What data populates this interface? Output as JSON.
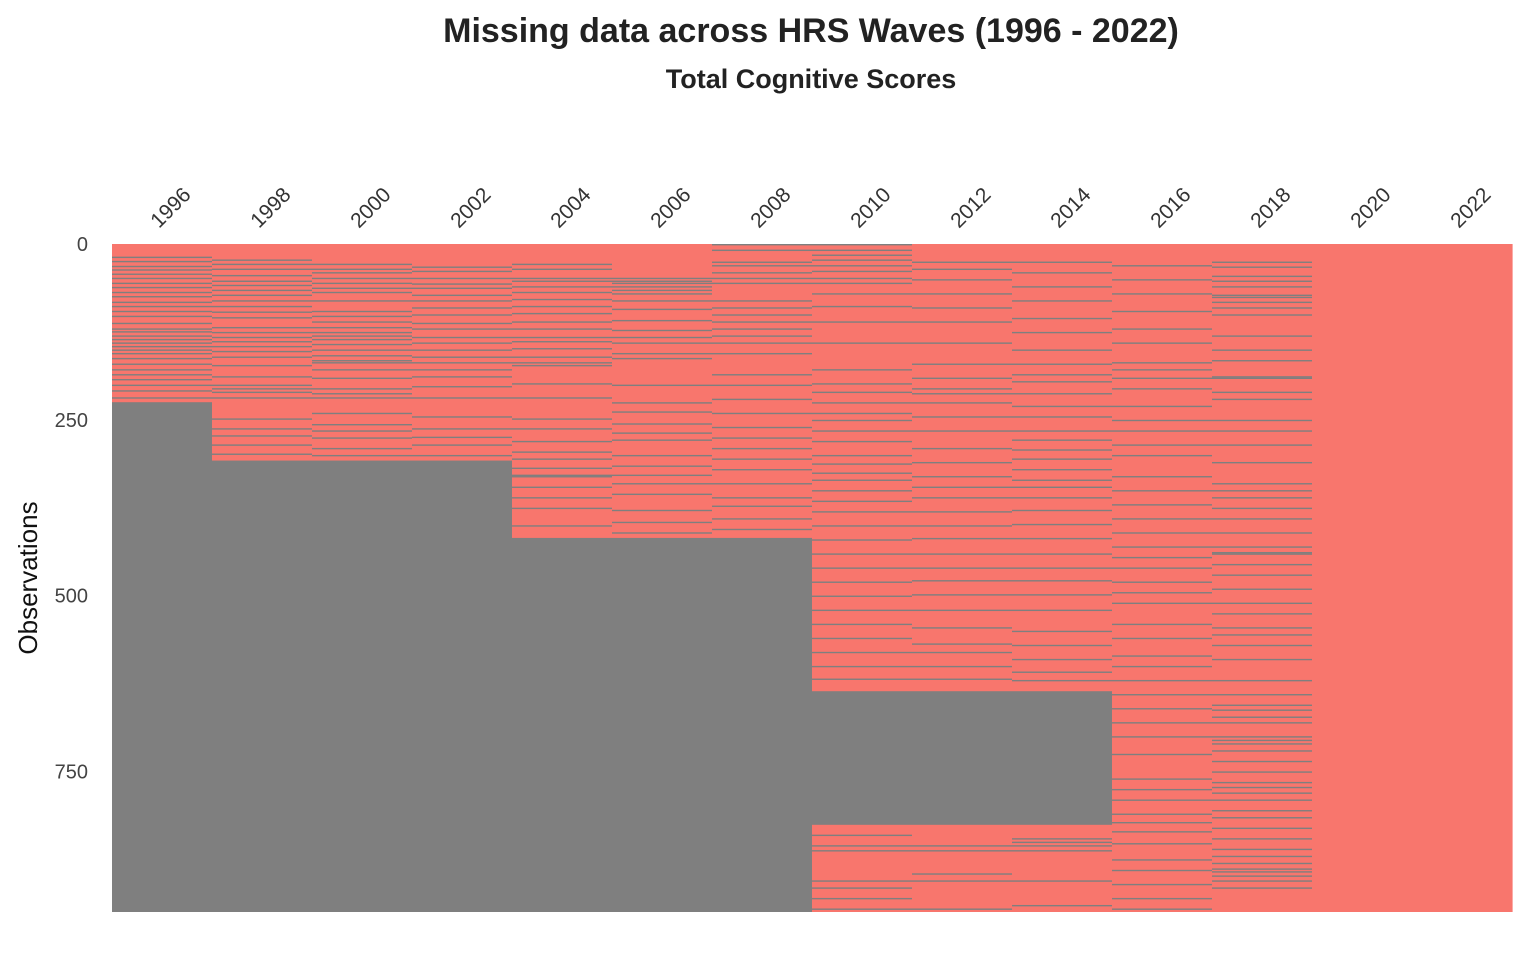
{
  "chart_data": {
    "type": "heatmap",
    "title": "Missing data across HRS Waves (1996 - 2022)",
    "subtitle": "Total Cognitive Scores",
    "xlabel": "",
    "ylabel": "Observations",
    "x_position": "top",
    "categories": [
      "1996",
      "1998",
      "2000",
      "2002",
      "2004",
      "2006",
      "2008",
      "2010",
      "2012",
      "2014",
      "2016",
      "2018",
      "2020",
      "2022"
    ],
    "highlighted_category": "2020",
    "highlight_color": "#ff0000",
    "n_observations": 950,
    "ylim": [
      0,
      950
    ],
    "y_ticks": [
      0,
      250,
      500,
      750
    ],
    "colors": {
      "present": "#f8766d",
      "missing": "#7f7f7f"
    },
    "missing_blocks": [
      {
        "year": "1996",
        "start": 225,
        "end": 950
      },
      {
        "year": "1998",
        "start": 308,
        "end": 950
      },
      {
        "year": "2000",
        "start": 308,
        "end": 950
      },
      {
        "year": "2002",
        "start": 308,
        "end": 950
      },
      {
        "year": "2004",
        "start": 418,
        "end": 950
      },
      {
        "year": "2006",
        "start": 418,
        "end": 950
      },
      {
        "year": "2008",
        "start": 418,
        "end": 950
      },
      {
        "year": "2010",
        "start": 636,
        "end": 826
      },
      {
        "year": "2012",
        "start": 636,
        "end": 826
      },
      {
        "year": "2014",
        "start": 636,
        "end": 826
      }
    ],
    "missing_lines": {
      "1996": [
        18,
        24,
        31,
        36,
        42,
        48,
        55,
        61,
        68,
        74,
        82,
        88,
        95,
        102,
        112,
        120,
        124,
        130,
        135,
        140,
        145,
        150,
        155,
        162,
        170,
        178,
        185,
        192,
        200,
        208,
        218
      ],
      "1998": [
        22,
        28,
        35,
        44,
        52,
        58,
        65,
        72,
        80,
        88,
        96,
        104,
        118,
        125,
        132,
        138,
        145,
        152,
        160,
        172,
        188,
        200,
        205,
        210,
        218,
        248,
        262,
        272,
        285,
        298
      ],
      "2000": [
        28,
        35,
        40,
        48,
        55,
        62,
        68,
        80,
        95,
        102,
        110,
        118,
        125,
        130,
        135,
        142,
        150,
        158,
        165,
        168,
        178,
        190,
        205,
        212,
        218,
        240,
        256,
        265,
        275,
        290,
        300
      ],
      "2002": [
        32,
        38,
        48,
        56,
        62,
        72,
        80,
        90,
        100,
        112,
        120,
        132,
        140,
        150,
        160,
        168,
        178,
        188,
        202,
        218,
        245,
        262,
        274,
        285,
        300
      ],
      "2004": [
        28,
        35,
        48,
        52,
        60,
        68,
        78,
        88,
        98,
        110,
        120,
        132,
        138,
        148,
        160,
        168,
        172,
        198,
        218,
        248,
        262,
        280,
        295,
        305,
        318,
        328,
        330,
        345,
        360,
        375,
        400
      ],
      "2006": [
        48,
        52,
        55,
        60,
        65,
        70,
        80,
        92,
        108,
        122,
        132,
        140,
        155,
        162,
        200,
        225,
        238,
        255,
        268,
        278,
        300,
        315,
        328,
        340,
        355,
        378,
        395,
        410
      ],
      "2008": [
        0,
        8,
        25,
        30,
        40,
        48,
        55,
        80,
        90,
        100,
        110,
        120,
        130,
        140,
        155,
        185,
        200,
        220,
        240,
        260,
        275,
        290,
        305,
        320,
        340,
        360,
        372,
        390,
        405
      ],
      "2010": [
        0,
        8,
        15,
        22,
        30,
        38,
        48,
        55,
        70,
        88,
        110,
        140,
        178,
        198,
        210,
        225,
        240,
        250,
        265,
        280,
        300,
        312,
        325,
        335,
        350,
        365,
        380,
        400,
        420,
        440,
        460,
        480,
        500,
        520,
        540,
        560,
        580,
        600,
        618,
        840,
        855,
        862,
        905,
        915,
        930,
        945
      ],
      "2012": [
        25,
        35,
        50,
        70,
        90,
        110,
        140,
        170,
        190,
        205,
        212,
        225,
        245,
        265,
        290,
        310,
        330,
        345,
        360,
        380,
        400,
        418,
        440,
        460,
        478,
        498,
        520,
        545,
        568,
        580,
        600,
        618,
        855,
        862,
        895,
        905,
        945
      ],
      "2014": [
        25,
        40,
        60,
        80,
        105,
        125,
        150,
        170,
        185,
        195,
        212,
        230,
        245,
        265,
        278,
        292,
        305,
        320,
        335,
        345,
        360,
        378,
        398,
        418,
        440,
        460,
        478,
        498,
        520,
        550,
        570,
        590,
        608,
        620,
        845,
        850,
        855,
        862,
        905,
        940
      ],
      "2016": [
        30,
        50,
        70,
        95,
        120,
        140,
        168,
        178,
        190,
        205,
        230,
        250,
        265,
        285,
        300,
        330,
        350,
        370,
        390,
        410,
        430,
        445,
        460,
        480,
        495,
        510,
        540,
        560,
        585,
        600,
        620,
        640,
        660,
        680,
        700,
        725,
        760,
        775,
        790,
        810,
        822,
        835,
        852,
        875,
        890,
        910,
        930,
        945
      ],
      "2018": [
        25,
        32,
        45,
        52,
        60,
        72,
        75,
        82,
        90,
        100,
        130,
        150,
        165,
        188,
        190,
        210,
        220,
        250,
        265,
        285,
        310,
        340,
        350,
        360,
        375,
        390,
        410,
        430,
        438,
        440,
        455,
        470,
        490,
        510,
        525,
        545,
        555,
        570,
        590,
        620,
        640,
        655,
        662,
        672,
        680,
        700,
        705,
        710,
        720,
        735,
        750,
        765,
        772,
        780,
        790,
        805,
        815,
        830,
        845,
        860,
        870,
        880,
        888,
        892,
        898,
        905,
        915
      ]
    }
  }
}
